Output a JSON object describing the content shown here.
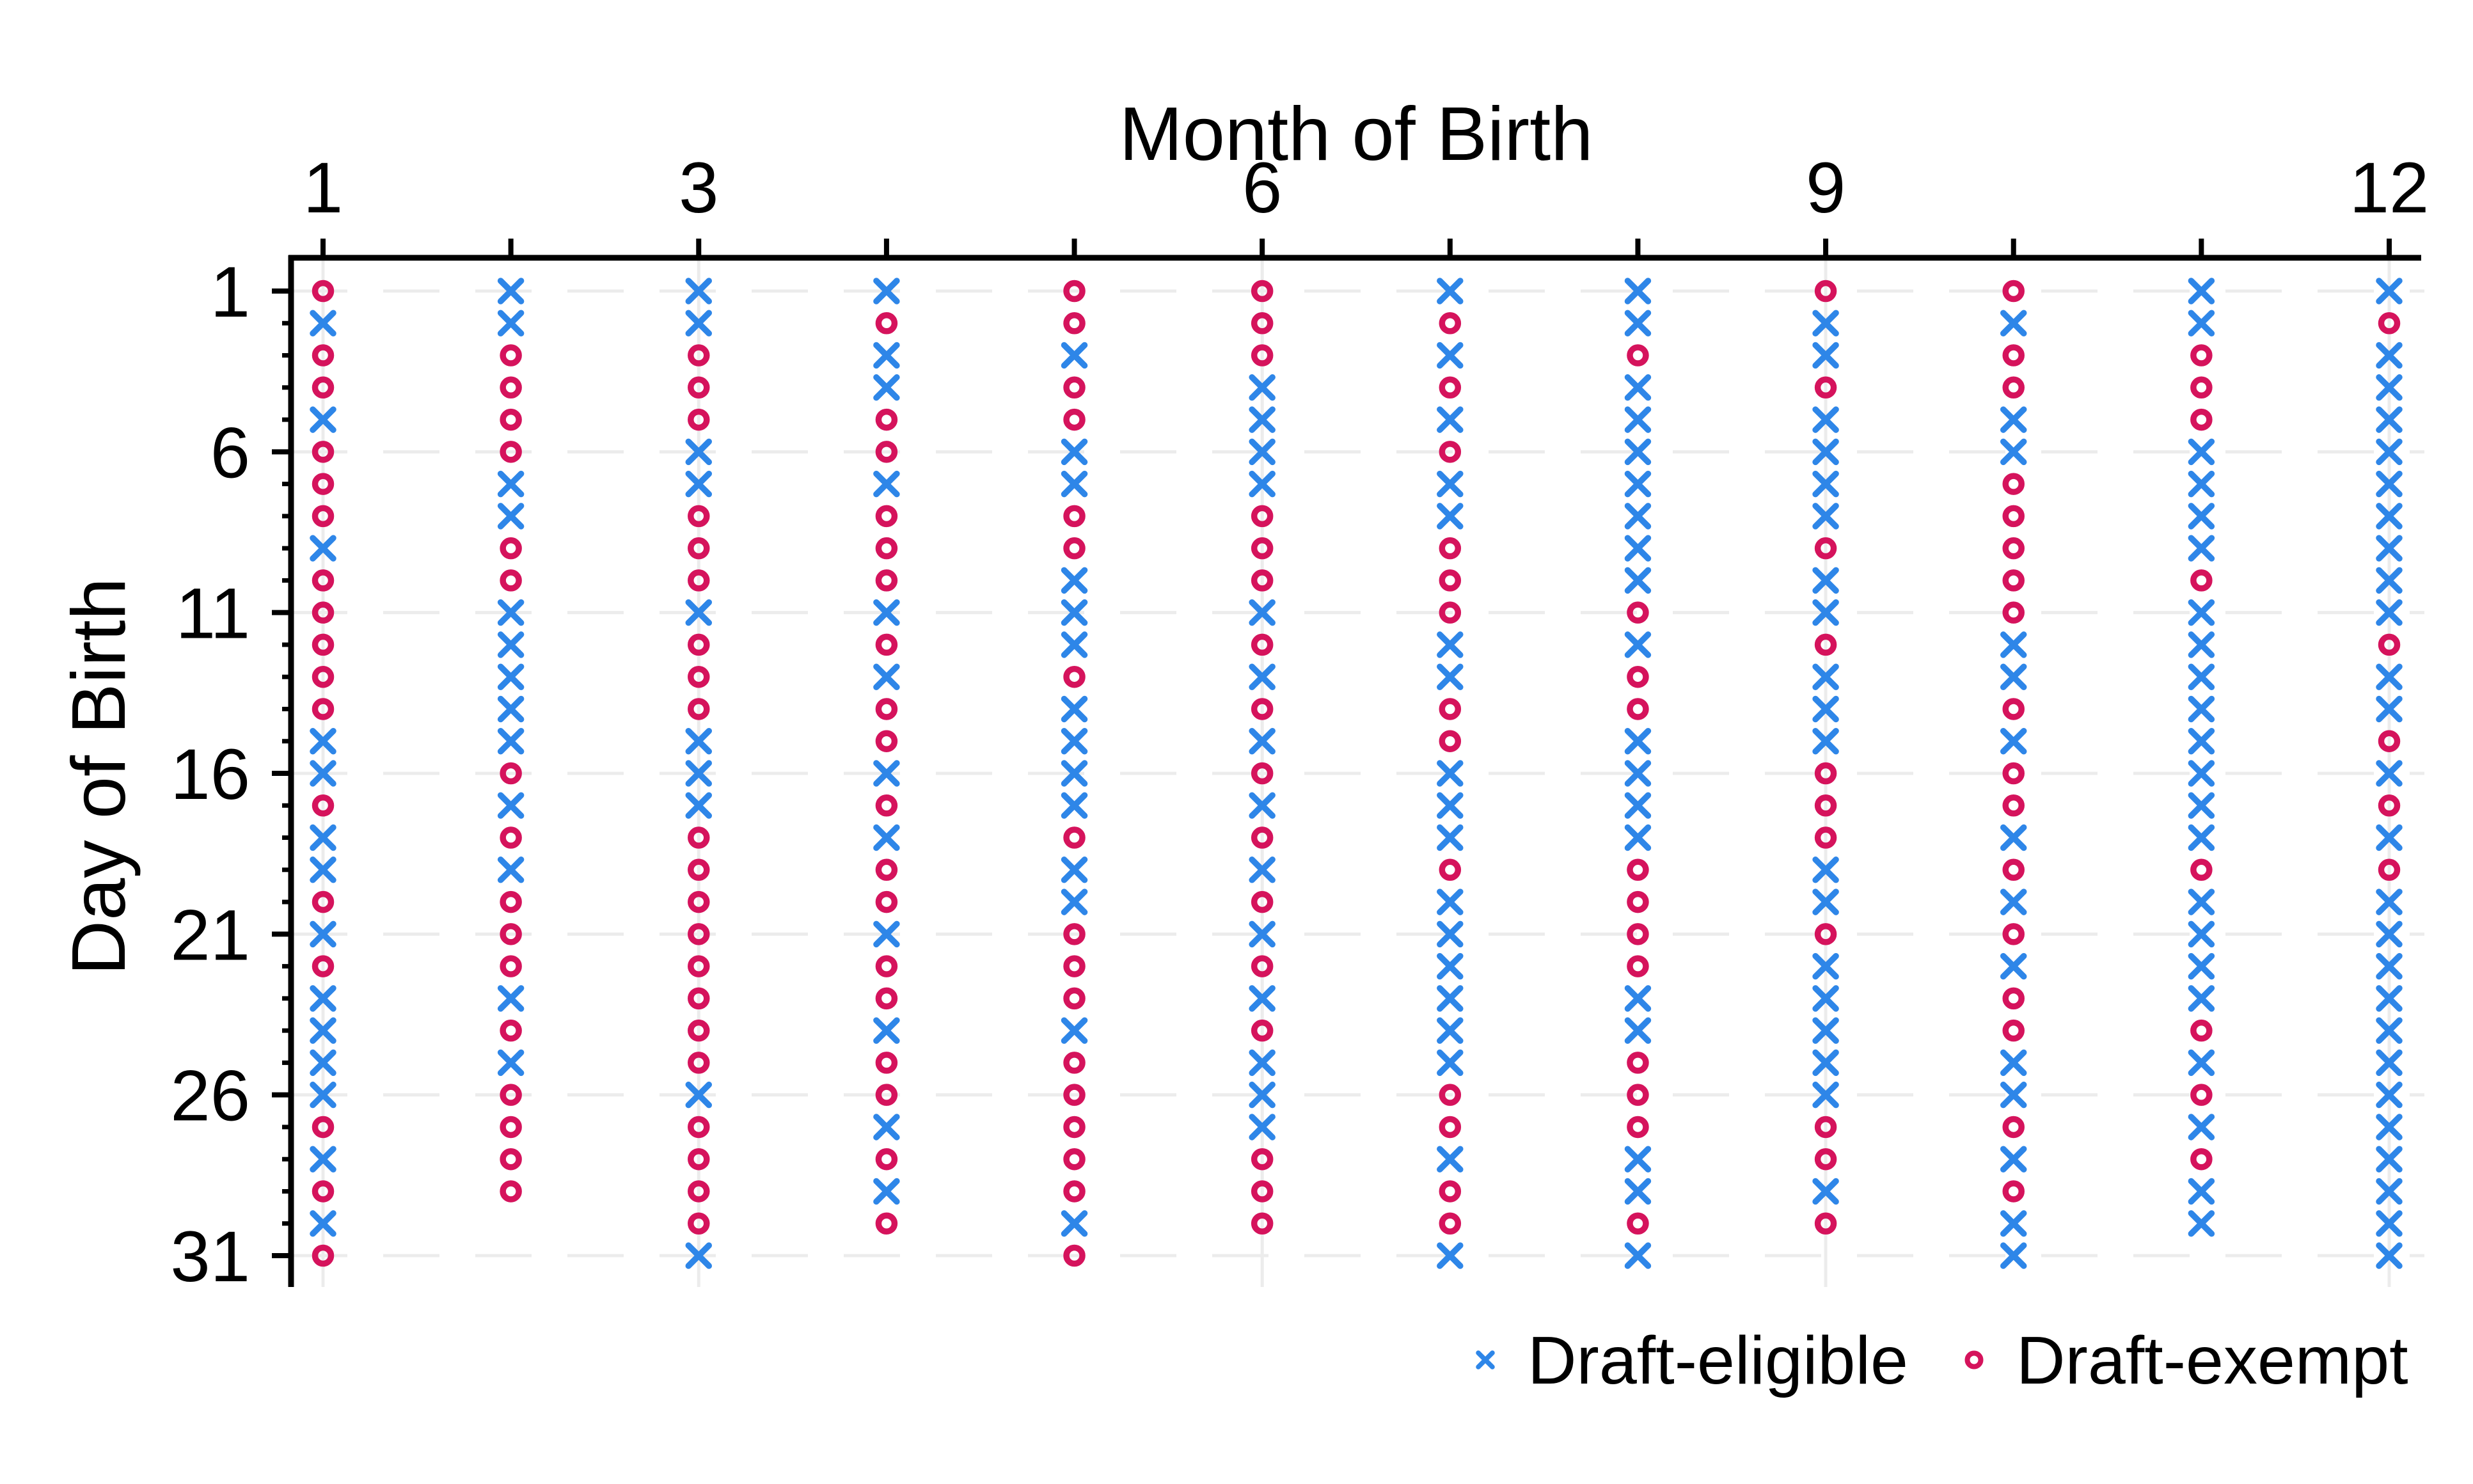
{
  "chart_data": {
    "type": "scatter",
    "xlabel": "Month of Birth",
    "ylabel": "Day of Birth",
    "x_range": [
      1,
      12
    ],
    "y_range": [
      1,
      31
    ],
    "y_axis_inverted": true,
    "x_axis_position": "top",
    "x_tick_labels": [
      1,
      3,
      6,
      9,
      12
    ],
    "y_tick_labels": [
      1,
      6,
      11,
      16,
      21,
      26,
      31
    ],
    "x_ticks_every_month": [
      1,
      2,
      3,
      4,
      5,
      6,
      7,
      8,
      9,
      10,
      11,
      12
    ],
    "y_ticks_every_day_count": 31,
    "grid": {
      "vertical_at_months": [
        1,
        3,
        6,
        9,
        12
      ],
      "horizontal_at_days": [
        1,
        6,
        11,
        16,
        21,
        26,
        31
      ],
      "horizontal_style": "dashed",
      "vertical_style": "solid",
      "color": "#ECECEC"
    },
    "legend": [
      {
        "label": "Draft-eligible",
        "marker": "x",
        "color": "#2E86E8"
      },
      {
        "label": "Draft-exempt",
        "marker": "o",
        "color": "#D5135C"
      }
    ],
    "marker_meanings": {
      "x": "Draft-eligible",
      "o": "Draft-exempt"
    },
    "months": [
      {
        "month": 1,
        "days": "oxooxoooxoooooxxoxxoxoxxxxoxoxo"
      },
      {
        "month": 2,
        "days": "xxooooxxooxxxxxoxoxoooxoxoooo"
      },
      {
        "month": 3,
        "days": "xxoooxxoooxoooxxxooooooooxoooox"
      },
      {
        "month": 4,
        "days": "xoxxooxoooxoxooxoxooxooxooxoxo"
      },
      {
        "month": 5,
        "days": "ooxooxxooxxxoxxxxoxxoooxoooooxo"
      },
      {
        "month": 6,
        "days": "oooxxxxoooxoxoxoxoxoxoxoxxxooo"
      },
      {
        "month": 7,
        "days": "xoxoxoxxoooxxooxxxoxxxxxxooxoox"
      },
      {
        "month": 8,
        "days": "xxoxxxxxxxoxooxxxxooooxxoooxxox"
      },
      {
        "month": 9,
        "days": "oxxoxxxxoxxoxxxoooxxoxxxxxooxo"
      },
      {
        "month": 10,
        "days": "oxooxxoooooxxoxooxoxoxooxxoxoxx"
      },
      {
        "month": 11,
        "days": "xxoooxxxxoxxxxxxxxoxxxxoxoxoxx"
      },
      {
        "month": 12,
        "days": "xoxxxxxxxxxoxxoxoxoxxxxxxxxxxxx"
      }
    ]
  },
  "colors": {
    "eligible": "#2E86E8",
    "exempt": "#D5135C",
    "grid": "#ECECEC",
    "axis": "#000000",
    "background": "#FFFFFF"
  }
}
